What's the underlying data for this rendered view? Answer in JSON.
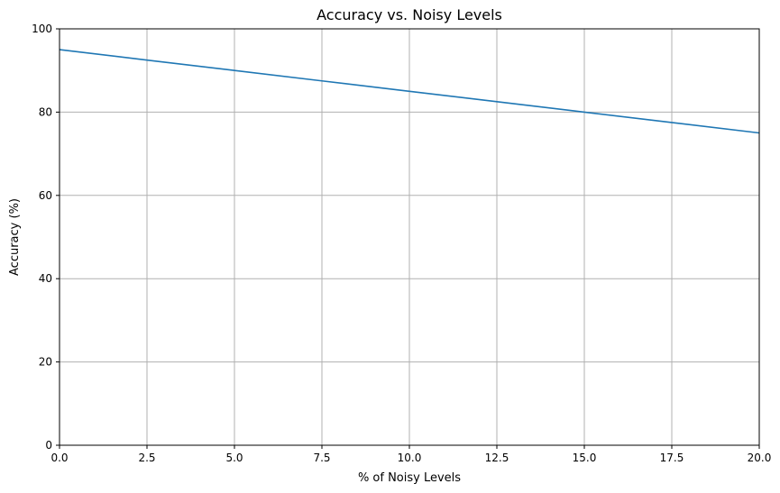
{
  "chart_data": {
    "type": "line",
    "title": "Accuracy vs. Noisy Levels",
    "xlabel": "% of Noisy Levels",
    "ylabel": "Accuracy (%)",
    "xlim": [
      0,
      20
    ],
    "ylim": [
      0,
      100
    ],
    "xticks": [
      0.0,
      2.5,
      5.0,
      7.5,
      10.0,
      12.5,
      15.0,
      17.5,
      20.0
    ],
    "xtick_labels": [
      "0.0",
      "2.5",
      "5.0",
      "7.5",
      "10.0",
      "12.5",
      "15.0",
      "17.5",
      "20.0"
    ],
    "yticks": [
      0,
      20,
      40,
      60,
      80,
      100
    ],
    "ytick_labels": [
      "0",
      "20",
      "40",
      "60",
      "80",
      "100"
    ],
    "grid": true,
    "series": [
      {
        "color": "#1f77b4",
        "x": [
          0,
          2.5,
          5,
          7.5,
          10,
          12.5,
          15,
          17.5,
          20
        ],
        "y": [
          95,
          92.5,
          90,
          87.5,
          85,
          82.5,
          80,
          77.5,
          75
        ]
      }
    ]
  }
}
